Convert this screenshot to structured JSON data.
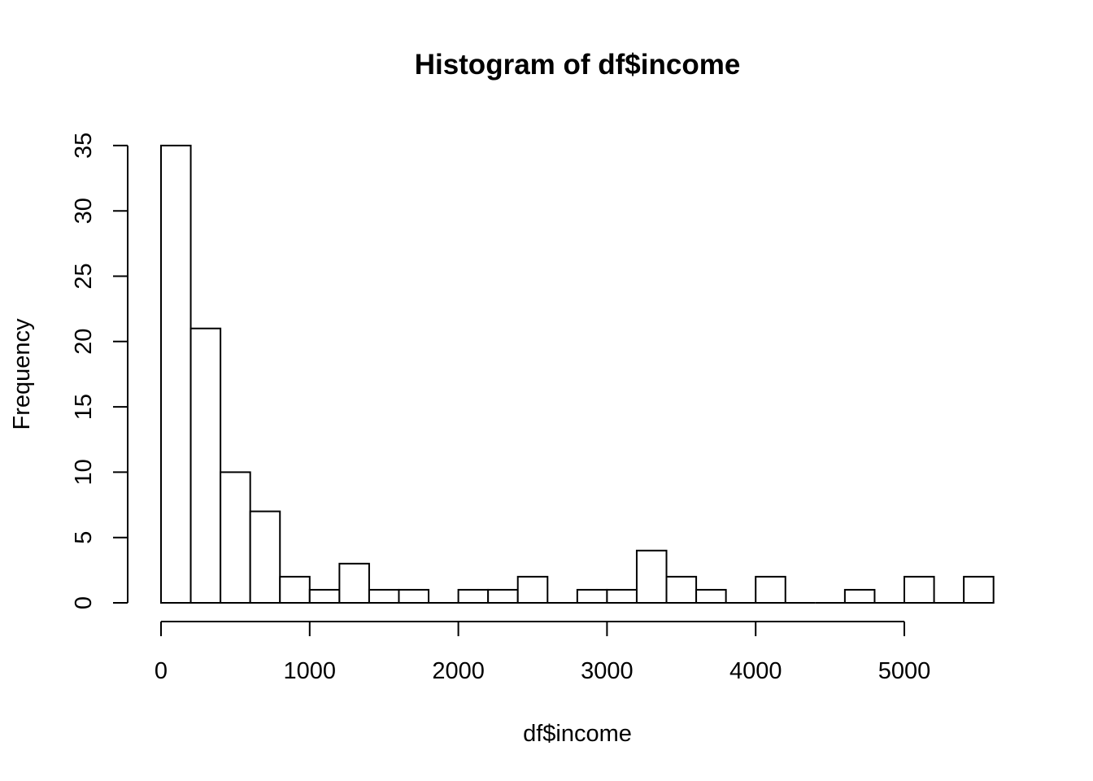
{
  "chart_data": {
    "type": "bar",
    "title": "Histogram of df$income",
    "xlabel": "df$income",
    "ylabel": "Frequency",
    "bin_width": 200,
    "xlim": [
      0,
      5600
    ],
    "ylim": [
      0,
      35
    ],
    "x_ticks": [
      0,
      1000,
      2000,
      3000,
      4000,
      5000
    ],
    "y_ticks": [
      0,
      5,
      10,
      15,
      20,
      25,
      30,
      35
    ],
    "bins": [
      {
        "start": 0,
        "end": 200,
        "count": 35
      },
      {
        "start": 200,
        "end": 400,
        "count": 21
      },
      {
        "start": 400,
        "end": 600,
        "count": 10
      },
      {
        "start": 600,
        "end": 800,
        "count": 7
      },
      {
        "start": 800,
        "end": 1000,
        "count": 2
      },
      {
        "start": 1000,
        "end": 1200,
        "count": 1
      },
      {
        "start": 1200,
        "end": 1400,
        "count": 3
      },
      {
        "start": 1400,
        "end": 1600,
        "count": 1
      },
      {
        "start": 1600,
        "end": 1800,
        "count": 1
      },
      {
        "start": 1800,
        "end": 2000,
        "count": 0
      },
      {
        "start": 2000,
        "end": 2200,
        "count": 1
      },
      {
        "start": 2200,
        "end": 2400,
        "count": 1
      },
      {
        "start": 2400,
        "end": 2600,
        "count": 2
      },
      {
        "start": 2600,
        "end": 2800,
        "count": 0
      },
      {
        "start": 2800,
        "end": 3000,
        "count": 1
      },
      {
        "start": 3000,
        "end": 3200,
        "count": 1
      },
      {
        "start": 3200,
        "end": 3400,
        "count": 4
      },
      {
        "start": 3400,
        "end": 3600,
        "count": 2
      },
      {
        "start": 3600,
        "end": 3800,
        "count": 1
      },
      {
        "start": 3800,
        "end": 4000,
        "count": 0
      },
      {
        "start": 4000,
        "end": 4200,
        "count": 2
      },
      {
        "start": 4200,
        "end": 4400,
        "count": 0
      },
      {
        "start": 4400,
        "end": 4600,
        "count": 0
      },
      {
        "start": 4600,
        "end": 4800,
        "count": 1
      },
      {
        "start": 4800,
        "end": 5000,
        "count": 0
      },
      {
        "start": 5000,
        "end": 5200,
        "count": 2
      },
      {
        "start": 5200,
        "end": 5400,
        "count": 0
      },
      {
        "start": 5400,
        "end": 5600,
        "count": 2
      }
    ],
    "bar_fill": "#ffffff",
    "bar_stroke": "#000000",
    "grid": false,
    "legend": false
  }
}
